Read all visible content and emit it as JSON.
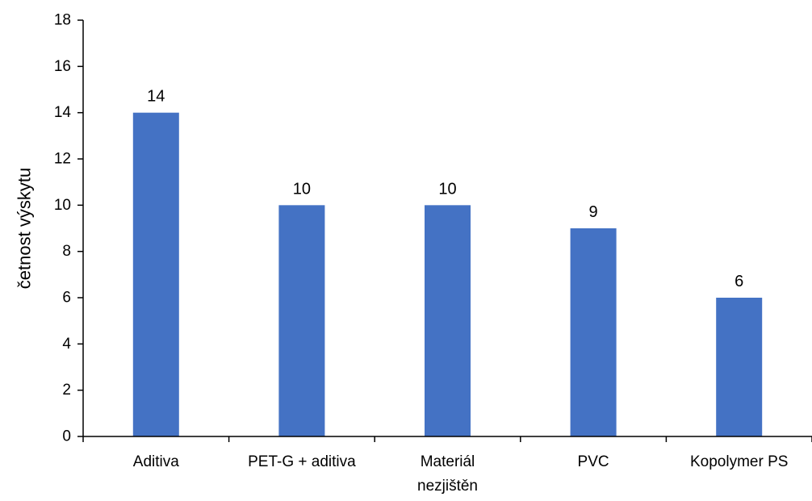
{
  "chart_data": {
    "type": "bar",
    "categories": [
      "Aditiva",
      "PET-G + aditiva",
      "Materiál nezjištěn",
      "PVC",
      "Kopolymer PS"
    ],
    "category_lines": [
      [
        "Aditiva"
      ],
      [
        "PET-G + aditiva"
      ],
      [
        "Materiál",
        "nezjištěn"
      ],
      [
        "PVC"
      ],
      [
        "Kopolymer PS"
      ]
    ],
    "values": [
      14,
      10,
      10,
      9,
      6
    ],
    "data_labels": [
      "14",
      "10",
      "10",
      "9",
      "6"
    ],
    "title": "",
    "xlabel": "",
    "ylabel": "četnost výskytu",
    "ylim": [
      0,
      18
    ],
    "yticks": [
      0,
      2,
      4,
      6,
      8,
      10,
      12,
      14,
      16,
      18
    ],
    "grid": false,
    "legend": "none",
    "colors": {
      "bar": "#4472C4",
      "axis": "#000000",
      "text": "#000000"
    }
  }
}
